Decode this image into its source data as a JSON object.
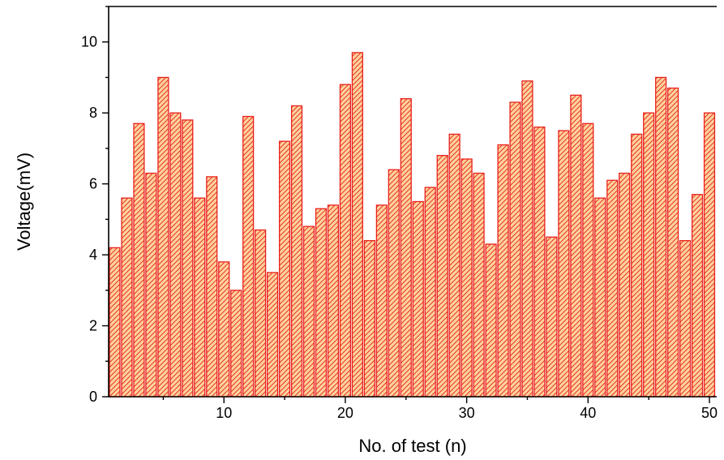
{
  "chart_data": {
    "type": "bar",
    "title": "",
    "xlabel": "No. of test (n)",
    "ylabel": "Voltage(mV)",
    "x": [
      1,
      2,
      3,
      4,
      5,
      6,
      7,
      8,
      9,
      10,
      11,
      12,
      13,
      14,
      15,
      16,
      17,
      18,
      19,
      20,
      21,
      22,
      23,
      24,
      25,
      26,
      27,
      28,
      29,
      30,
      31,
      32,
      33,
      34,
      35,
      36,
      37,
      38,
      39,
      40,
      41,
      42,
      43,
      44,
      45,
      46,
      47,
      48,
      49,
      50
    ],
    "values": [
      4.2,
      5.6,
      7.7,
      6.3,
      9.0,
      8.0,
      7.8,
      5.6,
      6.2,
      3.8,
      3.0,
      7.9,
      4.7,
      3.5,
      7.2,
      8.2,
      4.8,
      5.3,
      5.4,
      8.8,
      9.7,
      4.4,
      5.4,
      6.4,
      8.4,
      5.5,
      5.9,
      6.8,
      7.4,
      6.7,
      6.3,
      4.3,
      7.1,
      8.3,
      8.9,
      7.6,
      4.5,
      7.5,
      8.5,
      7.7,
      5.6,
      6.1,
      6.3,
      7.4,
      8.0,
      9.0,
      8.7,
      4.4,
      5.7,
      8.0
    ],
    "xticks": [
      10,
      20,
      30,
      40,
      50
    ],
    "yticks": [
      0,
      2,
      4,
      6,
      8,
      10
    ],
    "xlim": [
      0.5,
      50.6
    ],
    "ylim": [
      0,
      11
    ],
    "grid": false,
    "legend": "none",
    "bar_fill": "#fdd29c",
    "bar_edge": "#e8201c",
    "hatch": "diagonal"
  }
}
